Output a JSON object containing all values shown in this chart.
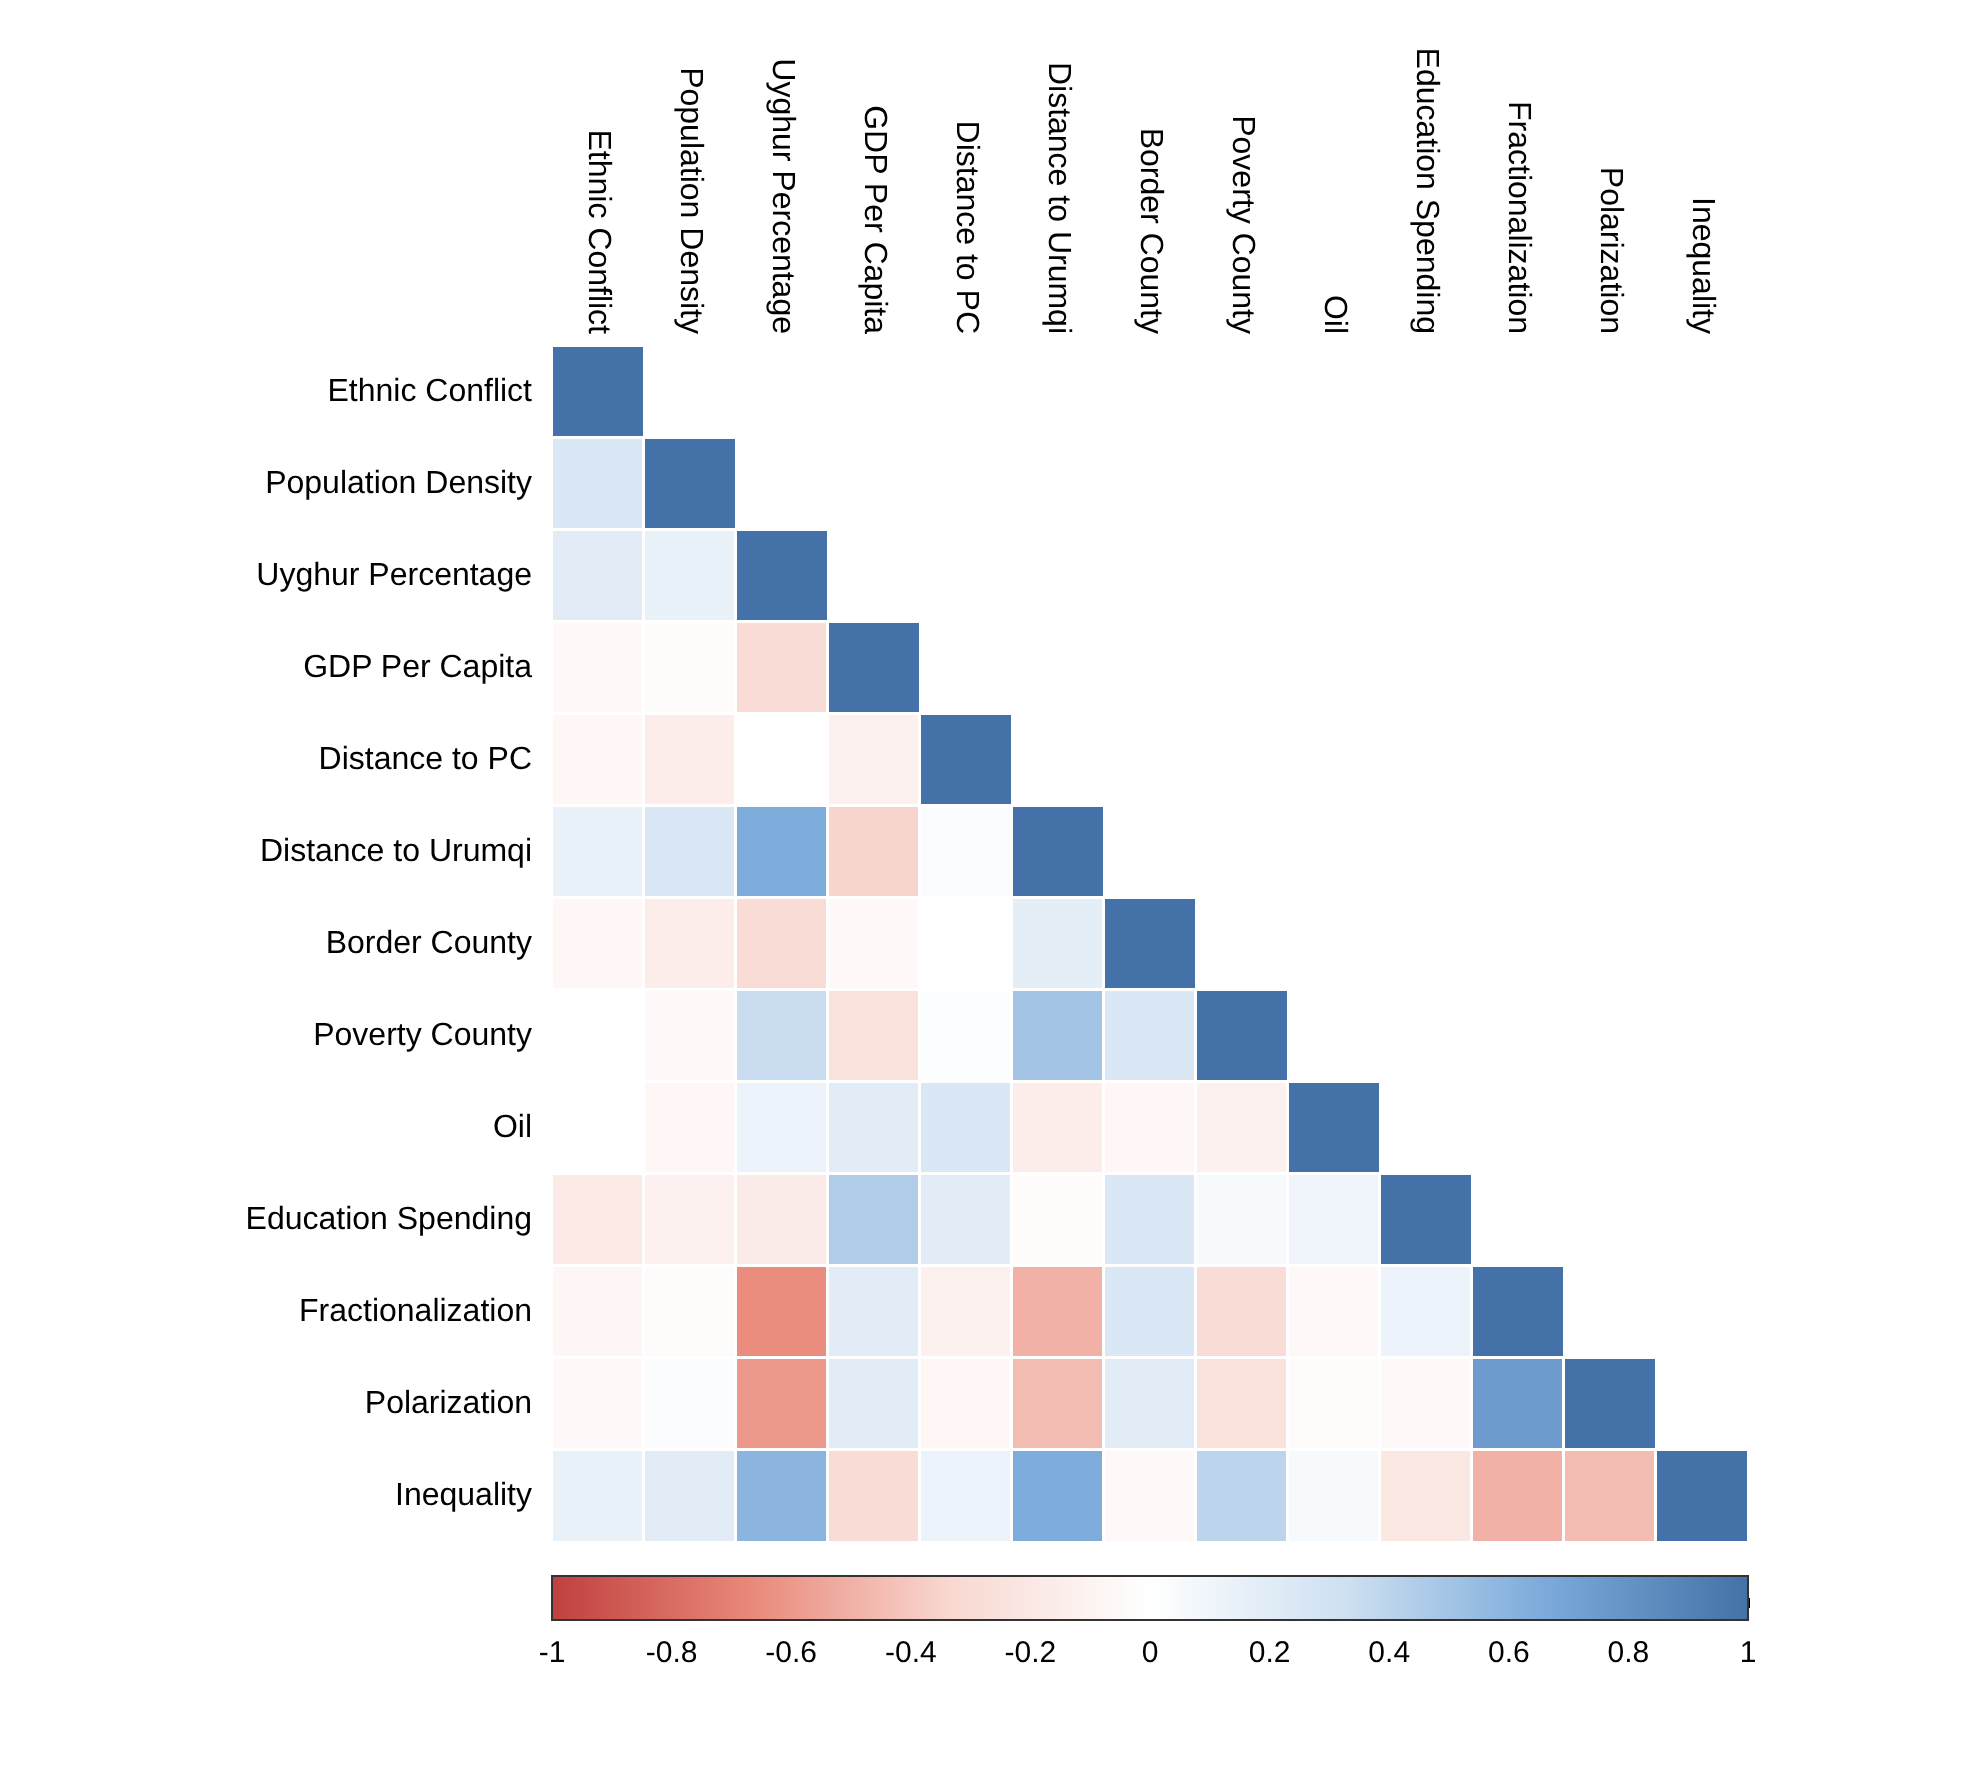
{
  "chart_data": {
    "type": "heatmap",
    "categories": [
      "Ethnic Conflict",
      "Population Density",
      "Uyghur Percentage",
      "GDP Per Capita",
      "Distance to PC",
      "Distance to Urumqi",
      "Border County",
      "Poverty County",
      "Oil",
      "Education Spending",
      "Fractionalization",
      "Polarization",
      "Inequality"
    ],
    "y_categories": [
      "Ethnic Conflict",
      "Population Density",
      "Uyghur Percentage",
      "GDP Per Capita",
      "Distance to PC",
      "Distance to Urumqi",
      "Border County",
      "Poverty County",
      "Oil",
      "Education Spending",
      "Fractionalization",
      "Polarization",
      "Inequality"
    ],
    "cells": [
      [
        1,
        null,
        null,
        null,
        null,
        null,
        null,
        null,
        null,
        null,
        null,
        null,
        null
      ],
      [
        0.25,
        1,
        null,
        null,
        null,
        null,
        null,
        null,
        null,
        null,
        null,
        null,
        null
      ],
      [
        0.2,
        0.15,
        1,
        null,
        null,
        null,
        null,
        null,
        null,
        null,
        null,
        null,
        null
      ],
      [
        -0.05,
        -0.03,
        -0.3,
        1,
        null,
        null,
        null,
        null,
        null,
        null,
        null,
        null,
        null
      ],
      [
        -0.07,
        -0.15,
        0,
        -0.12,
        1,
        null,
        null,
        null,
        null,
        null,
        null,
        null,
        null
      ],
      [
        0.15,
        0.25,
        0.65,
        -0.35,
        0.03,
        1,
        null,
        null,
        null,
        null,
        null,
        null,
        null
      ],
      [
        -0.07,
        -0.15,
        -0.3,
        -0.05,
        0.01,
        0.18,
        1,
        null,
        null,
        null,
        null,
        null,
        null
      ],
      [
        0,
        -0.05,
        0.35,
        -0.25,
        0.02,
        0.5,
        0.25,
        1,
        null,
        null,
        null,
        null,
        null
      ],
      [
        0,
        -0.07,
        0.12,
        0.2,
        0.25,
        -0.15,
        -0.07,
        -0.12,
        1,
        null,
        null,
        null,
        null
      ],
      [
        -0.18,
        -0.12,
        -0.17,
        0.45,
        0.2,
        -0.03,
        0.25,
        0.05,
        0.1,
        1,
        null,
        null,
        null
      ],
      [
        -0.08,
        -0.03,
        -0.65,
        0.2,
        -0.12,
        -0.5,
        0.25,
        -0.3,
        -0.05,
        0.12,
        1,
        null,
        null
      ],
      [
        -0.05,
        0.03,
        -0.6,
        0.2,
        -0.07,
        -0.45,
        0.2,
        -0.25,
        -0.03,
        -0.05,
        0.75,
        1,
        null
      ],
      [
        0.15,
        0.2,
        0.6,
        -0.3,
        0.13,
        0.65,
        -0.05,
        0.4,
        0.05,
        -0.2,
        -0.5,
        -0.45,
        1
      ]
    ],
    "clim": [
      -1,
      1
    ],
    "cticks": [
      -1,
      -0.8,
      -0.6,
      -0.4,
      -0.2,
      0,
      0.2,
      0.4,
      0.6,
      0.8,
      1
    ]
  }
}
